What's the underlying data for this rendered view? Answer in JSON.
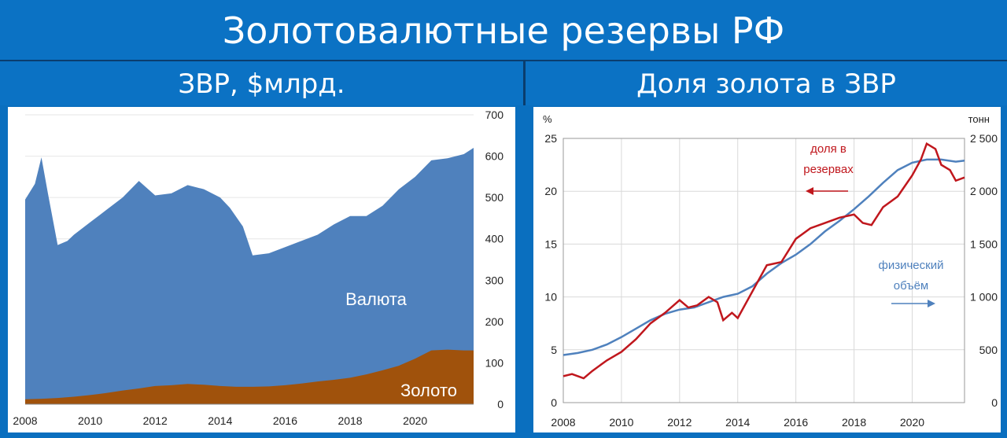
{
  "header": {
    "title": "Золотовалютные резервы РФ"
  },
  "left_panel": {
    "title": "ЗВР, $млрд."
  },
  "right_panel": {
    "title": "Доля золота в ЗВР"
  },
  "chart_data": [
    {
      "type": "area",
      "stacked": true,
      "title": "ЗВР, $млрд.",
      "x_ticks": [
        "2008",
        "2010",
        "2012",
        "2014",
        "2016",
        "2018",
        "2020"
      ],
      "y_ticks": [
        "0",
        "100",
        "200",
        "300",
        "400",
        "500",
        "600",
        "700"
      ],
      "ylim": [
        0,
        700
      ],
      "xlim": [
        2008,
        2021.8
      ],
      "y_axis_side": "right",
      "series": [
        {
          "name": "Золото",
          "color": "#a0520c",
          "x": [
            2008,
            2008.5,
            2009,
            2009.5,
            2010,
            2010.5,
            2011,
            2011.5,
            2012,
            2012.5,
            2013,
            2013.5,
            2014,
            2014.5,
            2015,
            2015.5,
            2016,
            2016.5,
            2017,
            2017.5,
            2018,
            2018.5,
            2019,
            2019.5,
            2020,
            2020.5,
            2021,
            2021.5,
            2021.8
          ],
          "values": [
            12,
            13,
            15,
            18,
            22,
            27,
            33,
            38,
            44,
            46,
            49,
            47,
            44,
            42,
            42,
            43,
            46,
            50,
            55,
            59,
            64,
            72,
            82,
            93,
            110,
            130,
            132,
            130,
            130
          ]
        },
        {
          "name": "Валюта",
          "color": "#4f81bd",
          "x": [
            2008,
            2008.3,
            2008.5,
            2008.7,
            2009,
            2009.3,
            2009.5,
            2010,
            2010.5,
            2011,
            2011.5,
            2012,
            2012.5,
            2013,
            2013.5,
            2014,
            2014.3,
            2014.7,
            2015,
            2015.5,
            2016,
            2016.5,
            2017,
            2017.5,
            2018,
            2018.5,
            2019,
            2019.5,
            2020,
            2020.5,
            2021,
            2021.5,
            2021.8
          ],
          "values": [
            483,
            520,
            575,
            495,
            378,
            388,
            400,
            415,
            450,
            470,
            488,
            462,
            460,
            475,
            460,
            460,
            430,
            345,
            315,
            322,
            335,
            345,
            352,
            370,
            390,
            385,
            400,
            425,
            438,
            455,
            460,
            472,
            487
          ],
          "total": [
            495,
            533,
            597,
            510,
            385,
            395,
            410,
            440,
            470,
            500,
            540,
            505,
            510,
            530,
            520,
            500,
            475,
            430,
            360,
            365,
            380,
            395,
            410,
            435,
            455,
            455,
            480,
            520,
            550,
            590,
            595,
            605,
            620
          ]
        }
      ],
      "annotations": [
        "Валюта",
        "Золото"
      ]
    },
    {
      "type": "line",
      "title": "Доля золота в ЗВР",
      "x_ticks": [
        "2008",
        "2010",
        "2012",
        "2014",
        "2016",
        "2018",
        "2020"
      ],
      "xlim": [
        2008,
        2021.8
      ],
      "y_left": {
        "unit": "%",
        "ticks": [
          "0",
          "5",
          "10",
          "15",
          "20",
          "25"
        ],
        "lim": [
          0,
          25
        ]
      },
      "y_right": {
        "unit": "тонн",
        "ticks": [
          "0",
          "500",
          "1 000",
          "1 500",
          "2 000",
          "2 500"
        ],
        "lim": [
          0,
          2500
        ]
      },
      "grid": true,
      "series": [
        {
          "name": "доля в резервах",
          "axis": "left",
          "color": "#c0171d",
          "x": [
            2008,
            2008.3,
            2008.7,
            2009,
            2009.5,
            2010,
            2010.5,
            2011,
            2011.5,
            2012,
            2012.3,
            2012.6,
            2013,
            2013.3,
            2013.5,
            2013.8,
            2014,
            2014.5,
            2015,
            2015.5,
            2016,
            2016.5,
            2017,
            2017.5,
            2018,
            2018.3,
            2018.6,
            2019,
            2019.5,
            2020,
            2020.3,
            2020.5,
            2020.8,
            2021,
            2021.3,
            2021.5,
            2021.8
          ],
          "values": [
            2.5,
            2.7,
            2.3,
            3.0,
            4.0,
            4.8,
            6.0,
            7.5,
            8.5,
            9.7,
            9.0,
            9.2,
            10.0,
            9.5,
            7.8,
            8.5,
            8.0,
            10.5,
            13.0,
            13.3,
            15.5,
            16.5,
            17.0,
            17.5,
            17.8,
            17.0,
            16.8,
            18.5,
            19.5,
            21.5,
            23.0,
            24.5,
            24.0,
            22.5,
            22.0,
            21.0,
            21.3
          ]
        },
        {
          "name": "физический объём",
          "axis": "right",
          "color": "#4f81bd",
          "x": [
            2008,
            2008.5,
            2009,
            2009.5,
            2010,
            2010.5,
            2011,
            2011.5,
            2012,
            2012.5,
            2013,
            2013.5,
            2014,
            2014.5,
            2015,
            2015.5,
            2016,
            2016.5,
            2017,
            2017.5,
            2018,
            2018.5,
            2019,
            2019.5,
            2020,
            2020.5,
            2021,
            2021.5,
            2021.8
          ],
          "values": [
            450,
            470,
            500,
            550,
            620,
            700,
            780,
            840,
            880,
            900,
            950,
            1000,
            1030,
            1100,
            1220,
            1320,
            1400,
            1500,
            1620,
            1720,
            1830,
            1950,
            2080,
            2200,
            2270,
            2300,
            2300,
            2280,
            2290
          ]
        }
      ],
      "annotations": [
        {
          "text": [
            "доля в",
            "резервах"
          ],
          "arrow": "left"
        },
        {
          "text": [
            "физический",
            "объём"
          ],
          "arrow": "right"
        }
      ]
    }
  ]
}
